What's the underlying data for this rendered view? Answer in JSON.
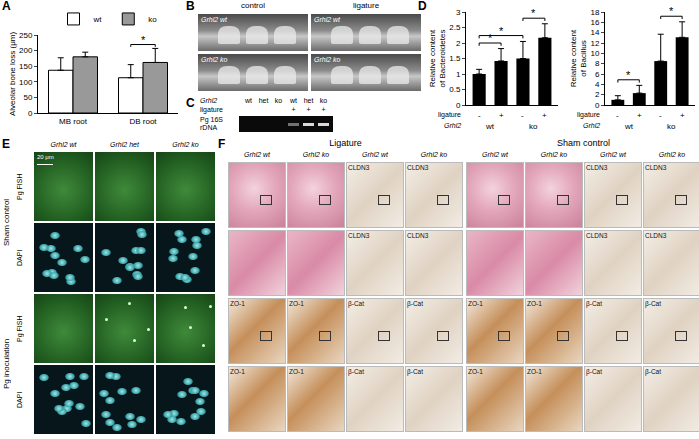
{
  "chart_data": [
    {
      "panel_label": "A",
      "type": "bar",
      "y_label": "Alveolar bone loss (μm)",
      "categories": [
        "MB root",
        "DB root"
      ],
      "series": [
        {
          "name": "wt",
          "color": "#ffffff",
          "values": [
            137,
            113
          ],
          "error": [
            40,
            42
          ]
        },
        {
          "name": "ko",
          "color": "#999999",
          "values": [
            180,
            162
          ],
          "error": [
            15,
            45
          ]
        }
      ],
      "ylim": [
        0,
        250
      ],
      "yticks": [
        0,
        50,
        100,
        150,
        200,
        250
      ],
      "grid": false,
      "legend": "top",
      "significance": [
        {
          "category": 1,
          "text": "*"
        }
      ]
    },
    {
      "panel_label": "D",
      "type": "bar",
      "y_label": "Relative content of Bacteroidetes",
      "categories": [
        "-",
        "+",
        "-",
        "+"
      ],
      "values": [
        1.0,
        1.42,
        1.5,
        2.17
      ],
      "error": [
        0.15,
        0.4,
        0.55,
        0.45
      ],
      "color": "#000000",
      "ylim": [
        0,
        3
      ],
      "yticks": [
        0,
        0.5,
        1,
        1.5,
        2,
        2.5,
        3
      ],
      "grid": false,
      "x_row_label": "ligature",
      "groups": {
        "label": "Grhl2",
        "names": [
          {
            "text": "wt",
            "from": 0,
            "to": 1
          },
          {
            "text": "ko",
            "from": 2,
            "to": 3
          }
        ]
      },
      "significance": [
        {
          "from": 0,
          "to": 1,
          "text": "*"
        },
        {
          "from": 0,
          "to": 2,
          "text": "*"
        },
        {
          "from": 2,
          "to": 3,
          "text": "*"
        }
      ]
    },
    {
      "type": "bar",
      "y_label": "Relative content of Bacillus",
      "categories": [
        "-",
        "+",
        "-",
        "+"
      ],
      "values": [
        1.0,
        2.3,
        8.5,
        13.1
      ],
      "error": [
        0.8,
        1.5,
        5.2,
        3.0
      ],
      "color": "#000000",
      "ylim": [
        0,
        18
      ],
      "yticks": [
        0,
        2,
        4,
        6,
        8,
        10,
        12,
        14,
        16,
        18
      ],
      "grid": false,
      "x_row_label": "ligature",
      "groups": {
        "label": "Grhl2",
        "names": [
          {
            "text": "wt",
            "from": 0,
            "to": 1
          },
          {
            "text": "ko",
            "from": 2,
            "to": 3
          }
        ]
      },
      "significance": [
        {
          "from": 0,
          "to": 1,
          "text": "*"
        },
        {
          "from": 2,
          "to": 3,
          "text": "*"
        }
      ]
    }
  ],
  "panels": {
    "B": {
      "panel_label": "B",
      "columns": [
        "control",
        "ligature"
      ],
      "images": [
        [
          "Grhl2 wt",
          "Grhl2 wt"
        ],
        [
          "Grhl2 ko",
          "Grhl2 ko"
        ]
      ]
    },
    "C": {
      "panel_label": "C",
      "rows": [
        {
          "label": "Grhl2",
          "lanes": [
            "wt",
            "het",
            "ko",
            "wt",
            "het",
            "ko"
          ]
        },
        {
          "label": "ligature",
          "lanes": [
            null,
            null,
            null,
            "+",
            "+",
            "+"
          ]
        }
      ],
      "band_label": "Pg 16S rDNA"
    },
    "E": {
      "panel_label": "E",
      "scale_bar": "20 μm",
      "columns": [
        "Grhl2 wt",
        "Grhl2 het",
        "Grhl2 ko"
      ],
      "groups": [
        {
          "label": "Sham control",
          "rows": [
            "Pg FISH",
            "DAPI"
          ]
        },
        {
          "label": "Pg inoculation",
          "rows": [
            "Pg FISH",
            "DAPI"
          ]
        }
      ]
    },
    "F": {
      "panel_label": "F",
      "sections": [
        {
          "label": "Ligature",
          "columns": [
            "Grhl2 wt",
            "Grhl2 ko",
            "Grhl2 wt",
            "Grhl2 ko"
          ],
          "stains": [
            [
              null,
              null,
              "CLDN3",
              "CLDN3"
            ],
            [
              null,
              null,
              "CLDN3",
              "CLDN3"
            ],
            [
              "ZO-1",
              "ZO-1",
              "β-Cat",
              "β-Cat"
            ],
            [
              "ZO-1",
              "ZO-1",
              "β-Cat",
              "β-Cat"
            ]
          ]
        },
        {
          "label": "Sham control",
          "columns": [
            "Grhl2 wt",
            "Grhl2 ko",
            "Grhl2 wt",
            "Grhl2 ko"
          ],
          "stains": [
            [
              null,
              null,
              "CLDN3",
              "CLDN3"
            ],
            [
              null,
              null,
              "CLDN3",
              "CLDN3"
            ],
            [
              "ZO-1",
              "ZO-1",
              "β-Cat",
              "β-Cat"
            ],
            [
              "ZO-1",
              "ZO-1",
              "β-Cat",
              "β-Cat"
            ]
          ]
        }
      ]
    }
  }
}
